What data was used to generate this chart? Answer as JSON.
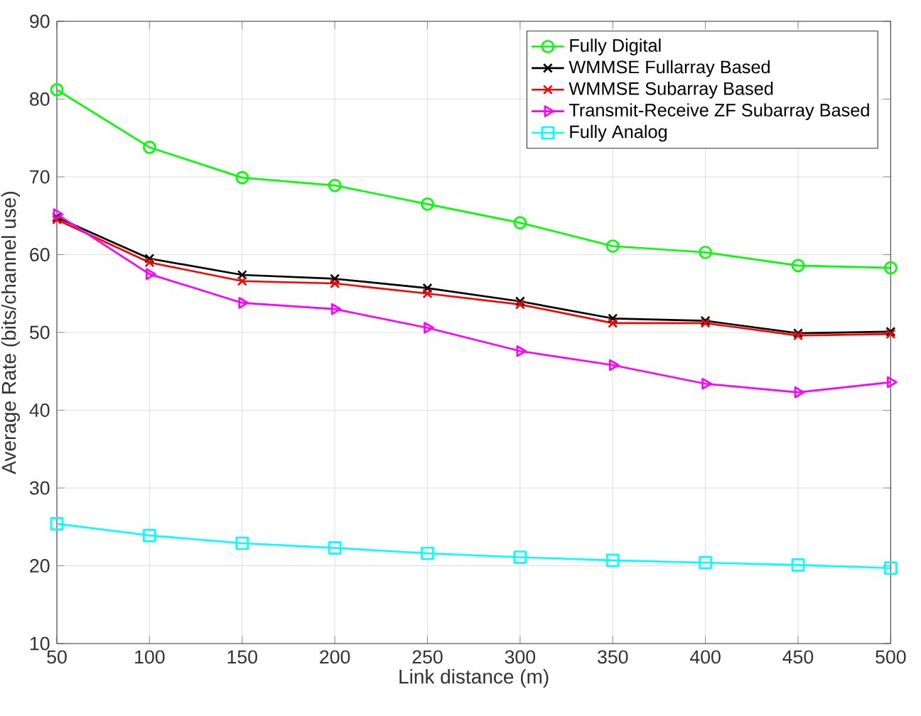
{
  "chart_data": {
    "type": "line",
    "xlabel": "Link distance (m)",
    "ylabel": "Average Rate (bits/channel use)",
    "x": [
      50,
      100,
      150,
      200,
      250,
      300,
      350,
      400,
      450,
      500
    ],
    "xlim": [
      50,
      500
    ],
    "xticks": [
      50,
      100,
      150,
      200,
      250,
      300,
      350,
      400,
      450,
      500
    ],
    "ylim": [
      10,
      90
    ],
    "yticks": [
      10,
      20,
      30,
      40,
      50,
      60,
      70,
      80,
      90
    ],
    "grid": true,
    "legend": "top right",
    "line_style": "solid",
    "series": [
      {
        "name": "Fully Digital",
        "color": "#00ff00",
        "marker": "circle",
        "values": [
          81.2,
          73.8,
          69.9,
          68.9,
          66.5,
          64.1,
          61.1,
          60.3,
          58.6,
          58.3
        ]
      },
      {
        "name": "WMMSE Fullarray Based",
        "color": "#000000",
        "marker": "cross",
        "values": [
          64.8,
          59.5,
          57.4,
          56.9,
          55.7,
          54.0,
          51.8,
          51.5,
          49.9,
          50.1
        ]
      },
      {
        "name": "WMMSE Subarray Based",
        "color": "#ff0000",
        "marker": "cross",
        "values": [
          64.5,
          59.0,
          56.6,
          56.3,
          55.0,
          53.6,
          51.2,
          51.2,
          49.6,
          49.8
        ]
      },
      {
        "name": "Transmit-Receive ZF Subarray Based",
        "color": "#ff00ff",
        "marker": "triangle",
        "values": [
          65.2,
          57.5,
          53.8,
          53.0,
          50.6,
          47.6,
          45.8,
          43.4,
          42.3,
          43.6
        ]
      },
      {
        "name": "Fully Analog",
        "color": "#00ffff",
        "marker": "square",
        "values": [
          25.4,
          23.9,
          22.9,
          22.3,
          21.6,
          21.1,
          20.7,
          20.4,
          20.1,
          19.7
        ]
      }
    ]
  }
}
